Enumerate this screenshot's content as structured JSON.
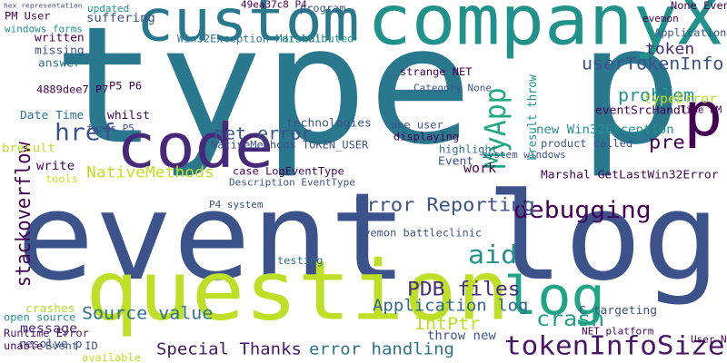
{
  "words": [
    "event log",
    "type p",
    "companyX",
    "custom",
    "question",
    "code",
    "log",
    "p",
    "tokenInfoSize",
    "debugging",
    "Error Reporting",
    "PDB files",
    "Application log",
    "aid",
    "crash",
    "Source value",
    "Special Thanks",
    "error handling",
    "IntPtr",
    "MyApp",
    "href",
    "net error",
    "userTokenInfo",
    "problem",
    "stackoverflow",
    "NativeMethods",
    "token",
    "pre",
    "hex representation",
    "PM User",
    "suffering",
    "windows forms",
    "written",
    "missing",
    "answer",
    "4889dee7 P7",
    "Date Time",
    "bresult",
    "write",
    "tools",
    "crashes",
    "open source",
    "message",
    "resolve p",
    "Runtime Error",
    "unable",
    "Event ID",
    "available",
    "Win32Exception Marshal",
    "distributed",
    "49ea37c8 P4",
    "None Event",
    "evemon",
    "Application",
    "strange NET",
    "Category None",
    "Time PM",
    "typeError",
    "eventSrcHandle",
    "new Win32Exception",
    "product called",
    "one user",
    "displaying",
    "highlight",
    "system windows",
    "work",
    "Event",
    "Marshal GetLastWin32Error",
    "technologies",
    "NativeMethods TOKEN_USER",
    "case LogEventType",
    "Description EventType",
    "P4 system",
    "testing",
    "evemon battleclinic",
    "throw new",
    "C targeting",
    "NET platform",
    "User N",
    "P5 P6",
    "whilst",
    "forms P5",
    "updated",
    "program",
    "bresult throw"
  ]
}
